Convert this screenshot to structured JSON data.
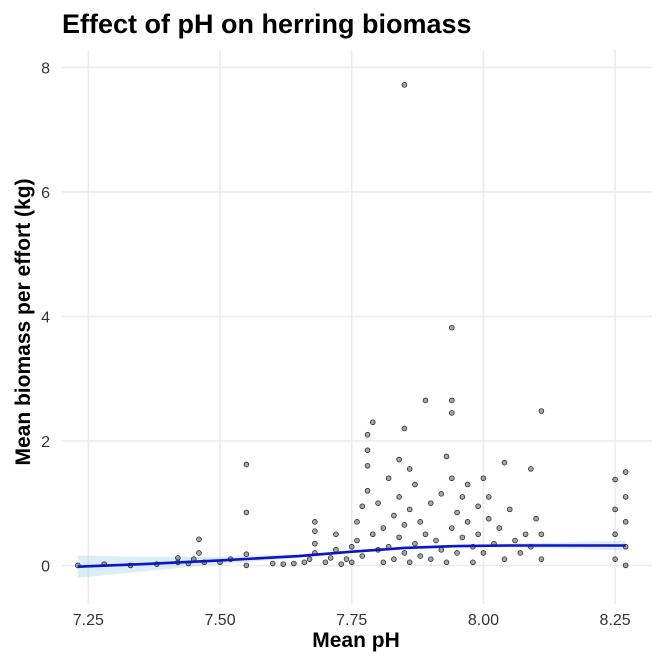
{
  "chart_data": {
    "type": "scatter",
    "title": "Effect of pH on herring biomass",
    "xlabel": "Mean pH",
    "ylabel": "Mean biomass per effort (kg)",
    "xlim": [
      7.2,
      8.32
    ],
    "ylim": [
      -0.62,
      8.28
    ],
    "x_ticks": [
      7.25,
      7.5,
      7.75,
      8.0,
      8.25
    ],
    "x_tick_labels": [
      "7.25",
      "7.50",
      "7.75",
      "8.00",
      "8.25"
    ],
    "y_ticks": [
      0,
      2,
      4,
      6,
      8
    ],
    "y_tick_labels": [
      "0",
      "2",
      "4",
      "6",
      "8"
    ],
    "grid": true,
    "legend": "none",
    "colors": {
      "points": "#000000",
      "trend": "#0a14c8",
      "ci_band": "#9ecae1",
      "grid": "#ebebeb"
    },
    "series": [
      {
        "kind": "points",
        "points": [
          [
            7.23,
            0.0
          ],
          [
            7.28,
            0.02
          ],
          [
            7.33,
            0.0
          ],
          [
            7.38,
            0.02
          ],
          [
            7.42,
            0.05
          ],
          [
            7.42,
            0.12
          ],
          [
            7.44,
            0.03
          ],
          [
            7.45,
            0.1
          ],
          [
            7.46,
            0.2
          ],
          [
            7.46,
            0.42
          ],
          [
            7.47,
            0.05
          ],
          [
            7.5,
            0.05
          ],
          [
            7.52,
            0.1
          ],
          [
            7.55,
            0.0
          ],
          [
            7.55,
            0.18
          ],
          [
            7.55,
            0.85
          ],
          [
            7.55,
            1.62
          ],
          [
            7.6,
            0.03
          ],
          [
            7.62,
            0.02
          ],
          [
            7.64,
            0.03
          ],
          [
            7.66,
            0.05
          ],
          [
            7.67,
            0.1
          ],
          [
            7.68,
            0.2
          ],
          [
            7.68,
            0.35
          ],
          [
            7.68,
            0.55
          ],
          [
            7.68,
            0.7
          ],
          [
            7.7,
            0.05
          ],
          [
            7.71,
            0.12
          ],
          [
            7.72,
            0.25
          ],
          [
            7.72,
            0.5
          ],
          [
            7.73,
            0.02
          ],
          [
            7.74,
            0.1
          ],
          [
            7.75,
            0.3
          ],
          [
            7.75,
            0.05
          ],
          [
            7.76,
            0.4
          ],
          [
            7.76,
            0.7
          ],
          [
            7.77,
            0.15
          ],
          [
            7.77,
            0.95
          ],
          [
            7.78,
            1.2
          ],
          [
            7.78,
            1.6
          ],
          [
            7.78,
            1.85
          ],
          [
            7.78,
            2.1
          ],
          [
            7.79,
            0.5
          ],
          [
            7.79,
            2.3
          ],
          [
            7.8,
            0.25
          ],
          [
            7.8,
            1.0
          ],
          [
            7.81,
            0.6
          ],
          [
            7.81,
            0.05
          ],
          [
            7.82,
            1.4
          ],
          [
            7.82,
            0.3
          ],
          [
            7.83,
            0.8
          ],
          [
            7.83,
            0.1
          ],
          [
            7.84,
            1.1
          ],
          [
            7.84,
            1.7
          ],
          [
            7.84,
            0.45
          ],
          [
            7.85,
            2.2
          ],
          [
            7.85,
            0.2
          ],
          [
            7.85,
            0.65
          ],
          [
            7.85,
            7.72
          ],
          [
            7.86,
            1.55
          ],
          [
            7.86,
            0.9
          ],
          [
            7.86,
            0.05
          ],
          [
            7.87,
            1.3
          ],
          [
            7.87,
            0.35
          ],
          [
            7.88,
            0.7
          ],
          [
            7.88,
            0.15
          ],
          [
            7.89,
            2.65
          ],
          [
            7.89,
            0.5
          ],
          [
            7.9,
            1.0
          ],
          [
            7.9,
            0.1
          ],
          [
            7.91,
            0.4
          ],
          [
            7.92,
            1.15
          ],
          [
            7.92,
            0.25
          ],
          [
            7.93,
            1.75
          ],
          [
            7.93,
            0.05
          ],
          [
            7.94,
            2.65
          ],
          [
            7.94,
            2.45
          ],
          [
            7.94,
            3.82
          ],
          [
            7.94,
            1.4
          ],
          [
            7.94,
            0.6
          ],
          [
            7.95,
            0.85
          ],
          [
            7.95,
            0.2
          ],
          [
            7.96,
            1.1
          ],
          [
            7.96,
            0.45
          ],
          [
            7.97,
            0.7
          ],
          [
            7.97,
            1.3
          ],
          [
            7.98,
            0.3
          ],
          [
            7.98,
            0.05
          ],
          [
            7.99,
            0.95
          ],
          [
            7.99,
            0.5
          ],
          [
            8.0,
            1.4
          ],
          [
            8.0,
            0.2
          ],
          [
            8.01,
            0.75
          ],
          [
            8.01,
            1.1
          ],
          [
            8.02,
            0.35
          ],
          [
            8.03,
            0.6
          ],
          [
            8.04,
            1.65
          ],
          [
            8.04,
            0.1
          ],
          [
            8.05,
            0.9
          ],
          [
            8.06,
            0.4
          ],
          [
            8.07,
            0.2
          ],
          [
            8.08,
            0.5
          ],
          [
            8.09,
            1.55
          ],
          [
            8.09,
            0.3
          ],
          [
            8.1,
            0.75
          ],
          [
            8.11,
            2.48
          ],
          [
            8.11,
            0.5
          ],
          [
            8.11,
            0.1
          ],
          [
            8.25,
            1.38
          ],
          [
            8.25,
            0.5
          ],
          [
            8.25,
            0.1
          ],
          [
            8.25,
            0.9
          ],
          [
            8.27,
            1.5
          ],
          [
            8.27,
            1.1
          ],
          [
            8.27,
            0.7
          ],
          [
            8.27,
            0.3
          ],
          [
            8.27,
            0.0
          ]
        ]
      },
      {
        "kind": "trend",
        "x": [
          7.23,
          7.35,
          7.5,
          7.65,
          7.75,
          7.85,
          7.95,
          8.05,
          8.15,
          8.27
        ],
        "y": [
          -0.02,
          0.02,
          0.08,
          0.15,
          0.22,
          0.28,
          0.31,
          0.32,
          0.32,
          0.32
        ],
        "ci_low": [
          -0.2,
          -0.1,
          0.02,
          0.12,
          0.2,
          0.26,
          0.29,
          0.29,
          0.27,
          0.24
        ],
        "ci_high": [
          0.16,
          0.14,
          0.14,
          0.18,
          0.24,
          0.3,
          0.33,
          0.35,
          0.37,
          0.4
        ]
      }
    ]
  }
}
